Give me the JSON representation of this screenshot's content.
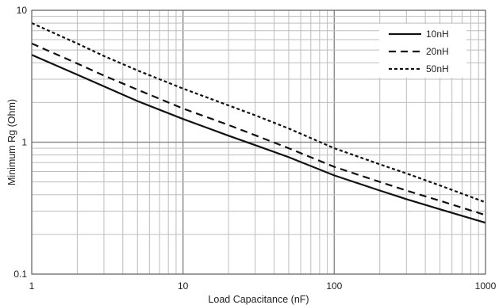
{
  "chart_data": {
    "type": "line",
    "title": "",
    "xlabel": "Load Capacitance (nF)",
    "ylabel": "Minimum Rg (Ohm)",
    "xscale": "log",
    "yscale": "log",
    "xlim": [
      1,
      1000
    ],
    "ylim": [
      0.1,
      10
    ],
    "grid": true,
    "legend_position": "top-right",
    "x_tick_labels": [
      "1",
      "10",
      "100",
      "1000"
    ],
    "y_tick_labels": [
      "0.1",
      "1",
      "10"
    ],
    "series": [
      {
        "name": "10nH",
        "style": "solid",
        "x": [
          1,
          2,
          3,
          5,
          10,
          20,
          30,
          50,
          100,
          200,
          300,
          500,
          1000
        ],
        "y": [
          4.6,
          3.25,
          2.65,
          2.05,
          1.5,
          1.12,
          0.95,
          0.77,
          0.56,
          0.43,
          0.37,
          0.31,
          0.245
        ]
      },
      {
        "name": "20nH",
        "style": "dashed",
        "x": [
          1,
          2,
          3,
          5,
          10,
          20,
          30,
          50,
          100,
          200,
          300,
          500,
          1000
        ],
        "y": [
          5.6,
          3.95,
          3.2,
          2.5,
          1.8,
          1.35,
          1.13,
          0.9,
          0.65,
          0.5,
          0.43,
          0.36,
          0.28
        ]
      },
      {
        "name": "50nH",
        "style": "dotted",
        "x": [
          1,
          2,
          3,
          5,
          10,
          20,
          30,
          50,
          100,
          200,
          300,
          500,
          1000
        ],
        "y": [
          8.0,
          5.6,
          4.5,
          3.5,
          2.55,
          1.9,
          1.6,
          1.27,
          0.9,
          0.68,
          0.58,
          0.47,
          0.35
        ]
      }
    ],
    "colors": {
      "line": "#111111",
      "grid_major": "#8a8a8a",
      "grid_minor": "#bdbdbd"
    }
  }
}
